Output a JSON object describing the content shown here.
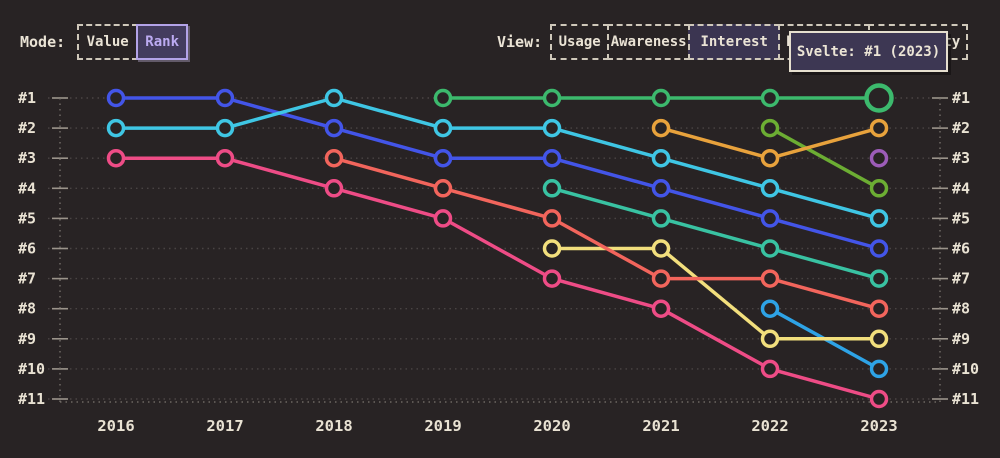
{
  "controls": {
    "mode": {
      "label": "Mode:",
      "options": [
        {
          "label": "Value",
          "selected": false
        },
        {
          "label": "Rank",
          "selected": true
        }
      ]
    },
    "view": {
      "label": "View:",
      "options": [
        {
          "label": "Usage",
          "selected": false
        },
        {
          "label": "Awareness",
          "selected": false
        },
        {
          "label": "Interest",
          "selected": true
        },
        {
          "label": "Retention",
          "selected": false
        },
        {
          "label": "Positivity",
          "selected": false
        }
      ]
    }
  },
  "tooltip": {
    "text": "Svelte: #1 (2023)"
  },
  "colors": {
    "background": "#282324",
    "text": "#e9e2d3",
    "gridline": "#4a4444",
    "tick": "#9b948b",
    "axis_dotted": "#7a746e",
    "selected_accent": "#b3a3e8"
  },
  "chart_data": {
    "type": "line",
    "subtype": "bump-rank",
    "x": [
      2016,
      2017,
      2018,
      2019,
      2020,
      2021,
      2022,
      2023
    ],
    "x_labels": [
      "2016",
      "2017",
      "2018",
      "2019",
      "2020",
      "2021",
      "2022",
      "2023"
    ],
    "y_axis_labels": [
      "#1",
      "#2",
      "#3",
      "#4",
      "#5",
      "#6",
      "#7",
      "#8",
      "#9",
      "#10",
      "#11"
    ],
    "y_axis_sides": "both",
    "ylim_ranks": [
      1,
      11
    ],
    "grid": "dotted horizontal lines per rank, dotted vertical axis lines left/right, dotted bottom axis",
    "legend": "none",
    "series": [
      {
        "name": "indigo",
        "color": "#4355e8",
        "ranks": [
          1,
          1,
          2,
          3,
          3,
          4,
          5,
          6
        ]
      },
      {
        "name": "cyan",
        "color": "#3fc6e4",
        "ranks": [
          2,
          2,
          1,
          2,
          2,
          3,
          4,
          5
        ]
      },
      {
        "name": "pink",
        "color": "#ee4c86",
        "ranks": [
          3,
          3,
          4,
          5,
          7,
          8,
          10,
          11
        ]
      },
      {
        "name": "teal",
        "color": "#39c2a2",
        "ranks": [
          null,
          null,
          null,
          null,
          4,
          5,
          6,
          7
        ]
      },
      {
        "name": "sky",
        "color": "#2ea3e6",
        "ranks": [
          null,
          null,
          null,
          null,
          null,
          null,
          8,
          10
        ]
      },
      {
        "name": "yellow",
        "color": "#f2df7d",
        "ranks": [
          null,
          null,
          null,
          null,
          6,
          6,
          9,
          9
        ]
      },
      {
        "name": "salmon",
        "color": "#f2655c",
        "ranks": [
          null,
          null,
          3,
          4,
          5,
          7,
          7,
          8
        ]
      },
      {
        "name": "lime",
        "color": "#6cad33",
        "ranks": [
          null,
          null,
          null,
          null,
          null,
          null,
          2,
          4
        ]
      },
      {
        "name": "orange",
        "color": "#e8a23c",
        "ranks": [
          null,
          null,
          null,
          null,
          null,
          2,
          3,
          2
        ]
      },
      {
        "name": "Svelte",
        "color": "#3cb96d",
        "ranks": [
          null,
          null,
          null,
          1,
          1,
          1,
          1,
          1
        ]
      },
      {
        "name": "purple",
        "color": "#9c5cb8",
        "ranks": [
          null,
          null,
          null,
          null,
          null,
          null,
          null,
          3
        ]
      }
    ],
    "highlight": {
      "series": "Svelte",
      "year": 2023,
      "rank": 1,
      "tooltip_text": "Svelte: #1 (2023)"
    }
  }
}
